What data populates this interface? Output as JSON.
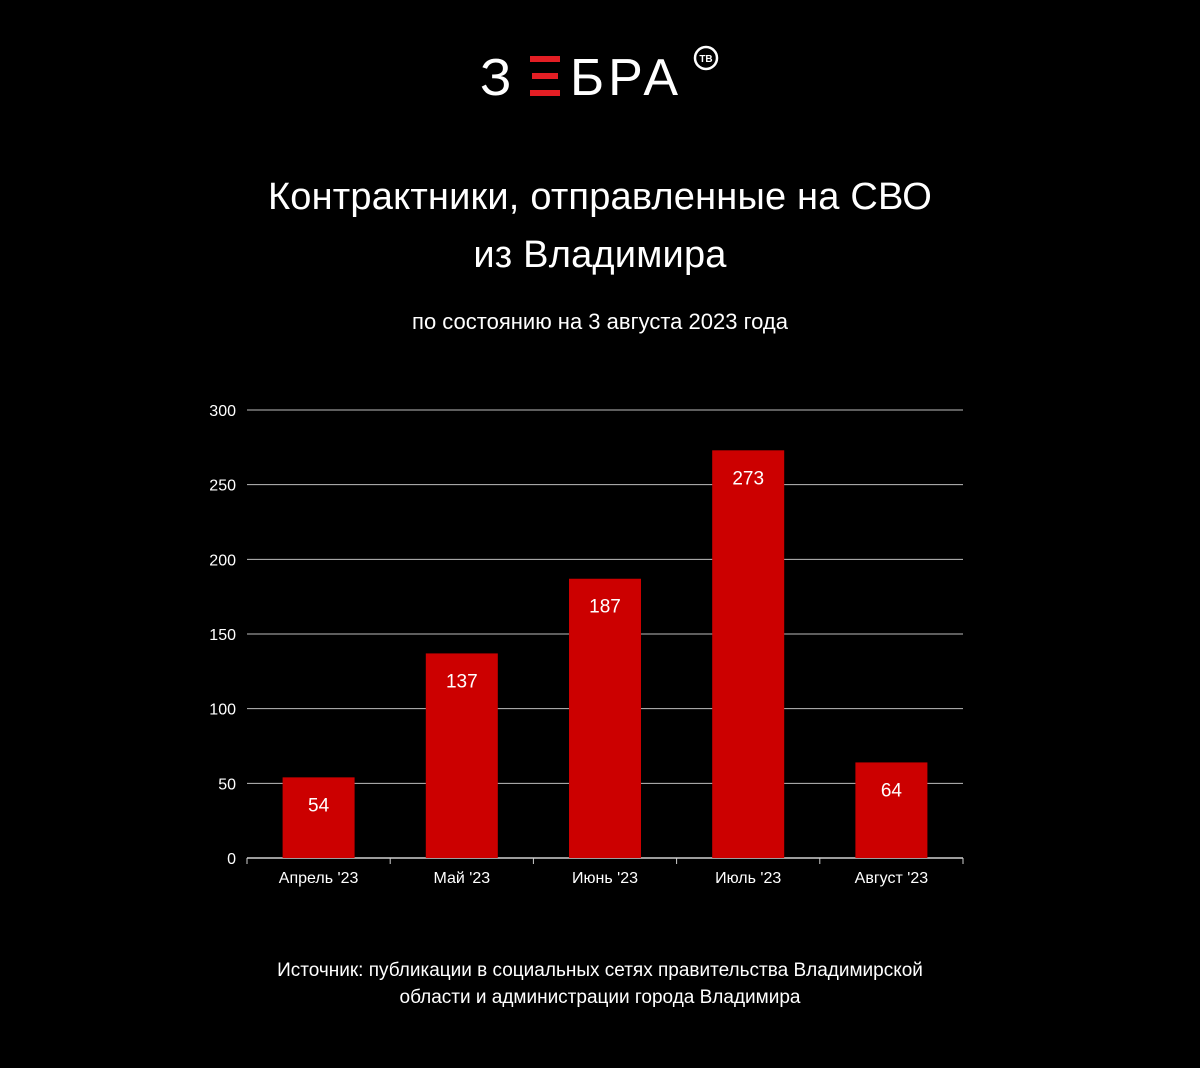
{
  "logo": {
    "text_left": "З",
    "text_mid": "Е",
    "text_right": "БРА",
    "badge": "ТВ",
    "accent_color": "#e31e24"
  },
  "chart_data": {
    "type": "bar",
    "title": "Контрактники, отправленные на СВО из Владимира",
    "title_lines": [
      "Контрактники, отправленные на СВО",
      "из Владимира"
    ],
    "subtitle": "по состоянию на 3 августа 2023 года",
    "categories": [
      "Апрель '23",
      "Май '23",
      "Июнь '23",
      "Июль '23",
      "Август '23"
    ],
    "values": [
      54,
      137,
      187,
      273,
      64
    ],
    "ylim": [
      0,
      300
    ],
    "yticks": [
      0,
      50,
      100,
      150,
      200,
      250,
      300
    ],
    "xlabel": "",
    "ylabel": "",
    "grid": true,
    "legend": "none",
    "bar_color": "#cc0000",
    "background": "#000000"
  },
  "source": {
    "line1": "Источник: публикации в социальных сетях правительства Владимирской",
    "line2": "области и администрации города Владимира"
  }
}
